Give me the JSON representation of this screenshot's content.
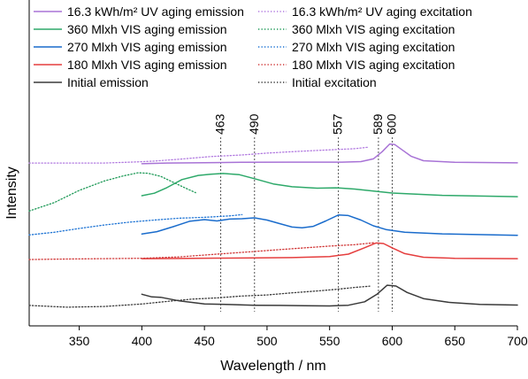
{
  "chart_data": {
    "type": "line",
    "xlabel": "Wavelength / nm",
    "ylabel": "Intensity",
    "xlim": [
      310,
      700
    ],
    "xticks": [
      350,
      400,
      450,
      500,
      550,
      600,
      650,
      700
    ],
    "y_ticks_shown": false,
    "legend_position": "top, two columns",
    "reference_lines": [
      {
        "x": 463,
        "label": "463"
      },
      {
        "x": 490,
        "label": "490"
      },
      {
        "x": 557,
        "label": "557"
      },
      {
        "x": 589,
        "label": "589"
      },
      {
        "x": 600,
        "label": "600"
      }
    ],
    "series": [
      {
        "name": "16.3 kWh/m² UV aging emission",
        "color": "#a873d6",
        "style": "solid",
        "points": [
          [
            400,
            0.828
          ],
          [
            420,
            0.832
          ],
          [
            450,
            0.834
          ],
          [
            480,
            0.836
          ],
          [
            520,
            0.837
          ],
          [
            560,
            0.837
          ],
          [
            575,
            0.84
          ],
          [
            585,
            0.855
          ],
          [
            592,
            0.895
          ],
          [
            598,
            0.938
          ],
          [
            602,
            0.935
          ],
          [
            608,
            0.905
          ],
          [
            615,
            0.87
          ],
          [
            625,
            0.845
          ],
          [
            650,
            0.836
          ],
          [
            700,
            0.833
          ]
        ]
      },
      {
        "name": "16.3 kWh/m² UV aging excitation",
        "color": "#b27be0",
        "style": "dotted",
        "points": [
          [
            310,
            0.832
          ],
          [
            340,
            0.832
          ],
          [
            370,
            0.832
          ],
          [
            395,
            0.838
          ],
          [
            410,
            0.843
          ],
          [
            430,
            0.853
          ],
          [
            455,
            0.868
          ],
          [
            480,
            0.877
          ],
          [
            500,
            0.887
          ],
          [
            520,
            0.895
          ],
          [
            540,
            0.902
          ],
          [
            555,
            0.907
          ],
          [
            570,
            0.912
          ],
          [
            580,
            0.919
          ]
        ]
      },
      {
        "name": "360 Mlxh VIS aging emission",
        "color": "#2ea96a",
        "style": "solid",
        "points": [
          [
            400,
            0.65
          ],
          [
            410,
            0.664
          ],
          [
            420,
            0.695
          ],
          [
            432,
            0.74
          ],
          [
            445,
            0.763
          ],
          [
            455,
            0.77
          ],
          [
            465,
            0.774
          ],
          [
            478,
            0.767
          ],
          [
            490,
            0.745
          ],
          [
            505,
            0.716
          ],
          [
            520,
            0.7
          ],
          [
            540,
            0.692
          ],
          [
            555,
            0.694
          ],
          [
            570,
            0.687
          ],
          [
            600,
            0.665
          ],
          [
            640,
            0.652
          ],
          [
            700,
            0.645
          ]
        ]
      },
      {
        "name": "360 Mlxh VIS aging excitation",
        "color": "#1f9a58",
        "style": "dotted",
        "points": [
          [
            310,
            0.565
          ],
          [
            330,
            0.612
          ],
          [
            350,
            0.68
          ],
          [
            370,
            0.732
          ],
          [
            385,
            0.76
          ],
          [
            397,
            0.778
          ],
          [
            405,
            0.775
          ],
          [
            415,
            0.758
          ],
          [
            425,
            0.725
          ],
          [
            435,
            0.692
          ],
          [
            443,
            0.667
          ]
        ]
      },
      {
        "name": "270 Mlxh VIS aging emission",
        "color": "#1a6ccc",
        "style": "solid",
        "points": [
          [
            400,
            0.437
          ],
          [
            412,
            0.45
          ],
          [
            425,
            0.478
          ],
          [
            438,
            0.508
          ],
          [
            450,
            0.517
          ],
          [
            460,
            0.51
          ],
          [
            470,
            0.52
          ],
          [
            480,
            0.522
          ],
          [
            490,
            0.527
          ],
          [
            500,
            0.515
          ],
          [
            510,
            0.495
          ],
          [
            520,
            0.476
          ],
          [
            528,
            0.472
          ],
          [
            537,
            0.48
          ],
          [
            547,
            0.51
          ],
          [
            557,
            0.543
          ],
          [
            565,
            0.54
          ],
          [
            575,
            0.515
          ],
          [
            585,
            0.483
          ],
          [
            595,
            0.462
          ],
          [
            610,
            0.447
          ],
          [
            640,
            0.438
          ],
          [
            700,
            0.43
          ]
        ]
      },
      {
        "name": "270 Mlxh VIS aging excitation",
        "color": "#1f74d4",
        "style": "dotted",
        "points": [
          [
            310,
            0.432
          ],
          [
            330,
            0.447
          ],
          [
            350,
            0.468
          ],
          [
            370,
            0.487
          ],
          [
            390,
            0.503
          ],
          [
            410,
            0.515
          ],
          [
            430,
            0.525
          ],
          [
            450,
            0.53
          ],
          [
            470,
            0.538
          ],
          [
            480,
            0.545
          ]
        ]
      },
      {
        "name": "180 Mlxh VIS aging emission",
        "color": "#e53e3e",
        "style": "solid",
        "points": [
          [
            400,
            0.3
          ],
          [
            430,
            0.301
          ],
          [
            460,
            0.303
          ],
          [
            490,
            0.304
          ],
          [
            520,
            0.306
          ],
          [
            550,
            0.312
          ],
          [
            565,
            0.325
          ],
          [
            577,
            0.358
          ],
          [
            587,
            0.387
          ],
          [
            593,
            0.384
          ],
          [
            600,
            0.36
          ],
          [
            610,
            0.328
          ],
          [
            625,
            0.308
          ],
          [
            650,
            0.302
          ],
          [
            700,
            0.3
          ]
        ]
      },
      {
        "name": "180 Mlxh VIS aging excitation",
        "color": "#d13a3a",
        "style": "dotted",
        "points": [
          [
            310,
            0.295
          ],
          [
            340,
            0.298
          ],
          [
            370,
            0.3
          ],
          [
            400,
            0.302
          ],
          [
            430,
            0.31
          ],
          [
            460,
            0.325
          ],
          [
            490,
            0.34
          ],
          [
            510,
            0.35
          ],
          [
            530,
            0.36
          ],
          [
            550,
            0.37
          ],
          [
            570,
            0.378
          ],
          [
            585,
            0.388
          ]
        ]
      },
      {
        "name": "Initial emission",
        "color": "#3a3a3a",
        "style": "solid",
        "points": [
          [
            400,
            0.102
          ],
          [
            408,
            0.087
          ],
          [
            415,
            0.085
          ],
          [
            430,
            0.065
          ],
          [
            450,
            0.048
          ],
          [
            470,
            0.045
          ],
          [
            490,
            0.041
          ],
          [
            510,
            0.04
          ],
          [
            530,
            0.038
          ],
          [
            550,
            0.037
          ],
          [
            565,
            0.041
          ],
          [
            578,
            0.06
          ],
          [
            588,
            0.103
          ],
          [
            596,
            0.152
          ],
          [
            603,
            0.148
          ],
          [
            612,
            0.112
          ],
          [
            625,
            0.078
          ],
          [
            645,
            0.057
          ],
          [
            670,
            0.046
          ],
          [
            700,
            0.042
          ]
        ]
      },
      {
        "name": "Initial excitation",
        "color": "#3a3a3a",
        "style": "dotted",
        "points": [
          [
            310,
            0.04
          ],
          [
            340,
            0.03
          ],
          [
            370,
            0.034
          ],
          [
            400,
            0.048
          ],
          [
            420,
            0.062
          ],
          [
            440,
            0.075
          ],
          [
            460,
            0.082
          ],
          [
            480,
            0.092
          ],
          [
            500,
            0.098
          ],
          [
            520,
            0.11
          ],
          [
            540,
            0.12
          ],
          [
            555,
            0.129
          ],
          [
            570,
            0.14
          ],
          [
            582,
            0.147
          ]
        ]
      }
    ]
  }
}
